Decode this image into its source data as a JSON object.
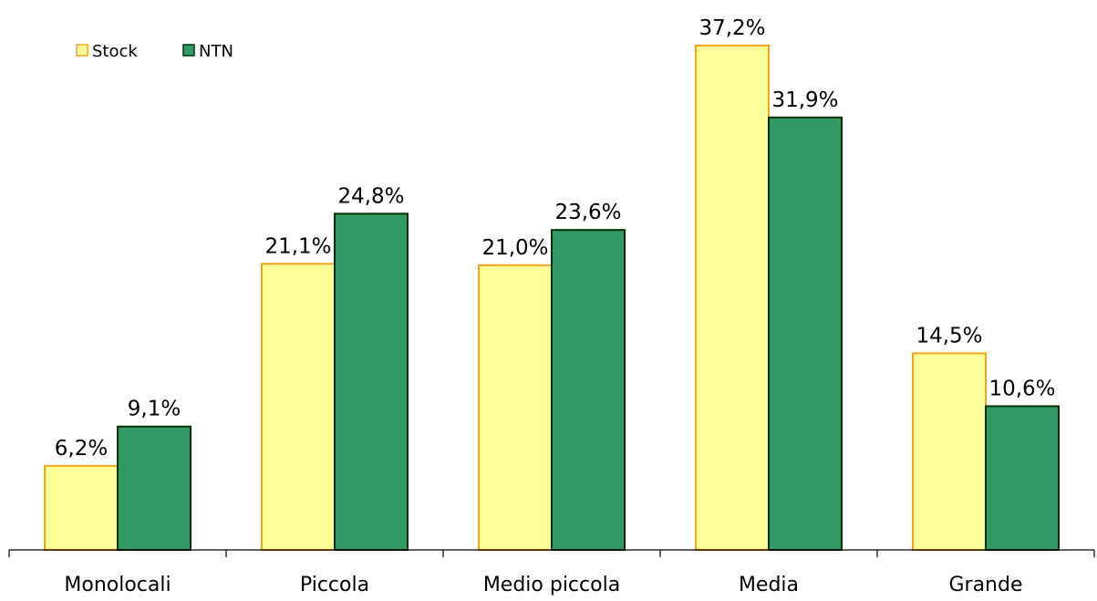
{
  "chart_data": {
    "type": "bar",
    "categories": [
      "Monolocali",
      "Piccola",
      "Medio piccola",
      "Media",
      "Grande"
    ],
    "series": [
      {
        "name": "Stock",
        "values": [
          6.2,
          21.1,
          21.0,
          37.2,
          14.5
        ],
        "labels": [
          "6,2%",
          "21,1%",
          "21,0%",
          "37,2%",
          "14,5%"
        ],
        "fill": "#FFFF99",
        "stroke": "#F5A31A"
      },
      {
        "name": "NTN",
        "values": [
          9.1,
          24.8,
          23.6,
          31.9,
          10.6
        ],
        "labels": [
          "9,1%",
          "24,8%",
          "23,6%",
          "31,9%",
          "10,6%"
        ],
        "fill": "#339966",
        "stroke": "#003300"
      }
    ],
    "title": "",
    "xlabel": "",
    "ylabel": "",
    "ylim": [
      0,
      37.2
    ],
    "grid": false,
    "legend_position": "top-left"
  }
}
